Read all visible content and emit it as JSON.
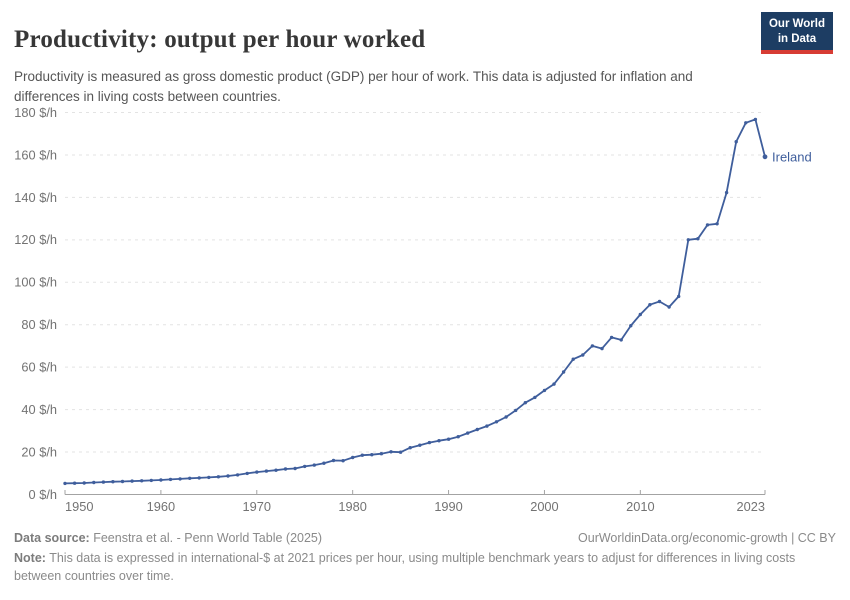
{
  "header": {
    "title": "Productivity: output per hour worked",
    "subtitle": "Productivity is measured as gross domestic product (GDP) per hour of work. This data is adjusted for inflation and differences in living costs between countries.",
    "logo": {
      "line1": "Our World",
      "line2": "in Data",
      "bg": "#1d3d63",
      "accent": "#d73c34"
    }
  },
  "chart_data": {
    "type": "line",
    "title": "Productivity: output per hour worked",
    "unit": "$/h",
    "xlabel": "",
    "ylabel": "",
    "ylim": [
      0,
      180
    ],
    "xlim": [
      1950,
      2023
    ],
    "y_ticks": [
      0,
      20,
      40,
      60,
      80,
      100,
      120,
      140,
      160,
      180
    ],
    "x_ticks": [
      1950,
      1960,
      1970,
      1980,
      1990,
      2000,
      2010,
      2023
    ],
    "grid": "horizontal-dashed",
    "legend_position": "end-of-line-label",
    "series": [
      {
        "name": "Ireland",
        "color": "#3f5e9c",
        "years": [
          1950,
          1951,
          1952,
          1953,
          1954,
          1955,
          1956,
          1957,
          1958,
          1959,
          1960,
          1961,
          1962,
          1963,
          1964,
          1965,
          1966,
          1967,
          1968,
          1969,
          1970,
          1971,
          1972,
          1973,
          1974,
          1975,
          1976,
          1977,
          1978,
          1979,
          1980,
          1981,
          1982,
          1983,
          1984,
          1985,
          1986,
          1987,
          1988,
          1989,
          1990,
          1991,
          1992,
          1993,
          1994,
          1995,
          1996,
          1997,
          1998,
          1999,
          2000,
          2001,
          2002,
          2003,
          2004,
          2005,
          2006,
          2007,
          2008,
          2009,
          2010,
          2011,
          2012,
          2013,
          2014,
          2015,
          2016,
          2017,
          2018,
          2019,
          2020,
          2021,
          2022,
          2023
        ],
        "values": [
          5.0,
          5.1,
          5.2,
          5.4,
          5.6,
          5.8,
          5.9,
          6.1,
          6.2,
          6.4,
          6.6,
          6.9,
          7.1,
          7.4,
          7.6,
          7.8,
          8.1,
          8.5,
          9.0,
          9.7,
          10.3,
          10.8,
          11.2,
          11.8,
          12.0,
          13.0,
          13.6,
          14.5,
          15.8,
          15.7,
          17.2,
          18.3,
          18.5,
          19.0,
          19.9,
          19.7,
          21.8,
          23.0,
          24.2,
          25.1,
          25.8,
          27.0,
          28.7,
          30.4,
          32.0,
          34.0,
          36.3,
          39.4,
          43.0,
          45.5,
          48.8,
          51.8,
          57.5,
          63.5,
          65.5,
          69.8,
          68.5,
          73.8,
          72.6,
          79.3,
          84.6,
          89.2,
          90.7,
          88.1,
          93.1,
          119.8,
          120.3,
          126.8,
          127.3,
          142.0,
          166.0,
          174.9,
          176.5,
          158.9
        ]
      }
    ]
  },
  "footer": {
    "datasource_label": "Data source:",
    "datasource": "Feenstra et al. - Penn World Table (2025)",
    "link": "OurWorldinData.org/economic-growth | CC BY",
    "note_label": "Note:",
    "note": "This data is expressed in international-$ at 2021 prices per hour, using multiple benchmark years to adjust for differences in living costs between countries over time."
  }
}
